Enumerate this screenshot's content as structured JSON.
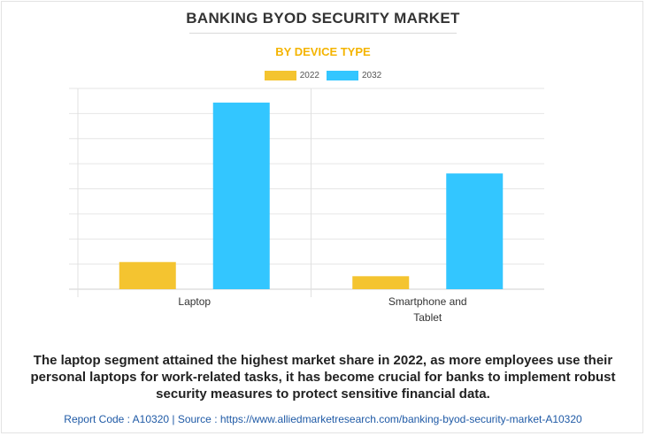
{
  "header": {
    "title": "BANKING BYOD SECURITY MARKET",
    "subtitle": "BY DEVICE TYPE"
  },
  "chart_data": {
    "type": "bar",
    "categories": [
      "Laptop",
      "Smartphone and Tablet"
    ],
    "series": [
      {
        "name": "2022",
        "values": [
          1.15,
          0.55
        ],
        "color": "#f4c430"
      },
      {
        "name": "2032",
        "values": [
          7.9,
          4.9
        ],
        "color": "#33c6ff"
      }
    ],
    "ylim": [
      0,
      8.5
    ],
    "grid": true,
    "legend": "top-center"
  },
  "caption": "The laptop segment attained the highest market share in 2022, as more employees use their personal laptops for work-related tasks, it has become crucial for banks to implement robust security measures to protect sensitive financial data.",
  "footer": "Report Code : A10320  |  Source : https://www.alliedmarketresearch.com/banking-byod-security-market-A10320"
}
